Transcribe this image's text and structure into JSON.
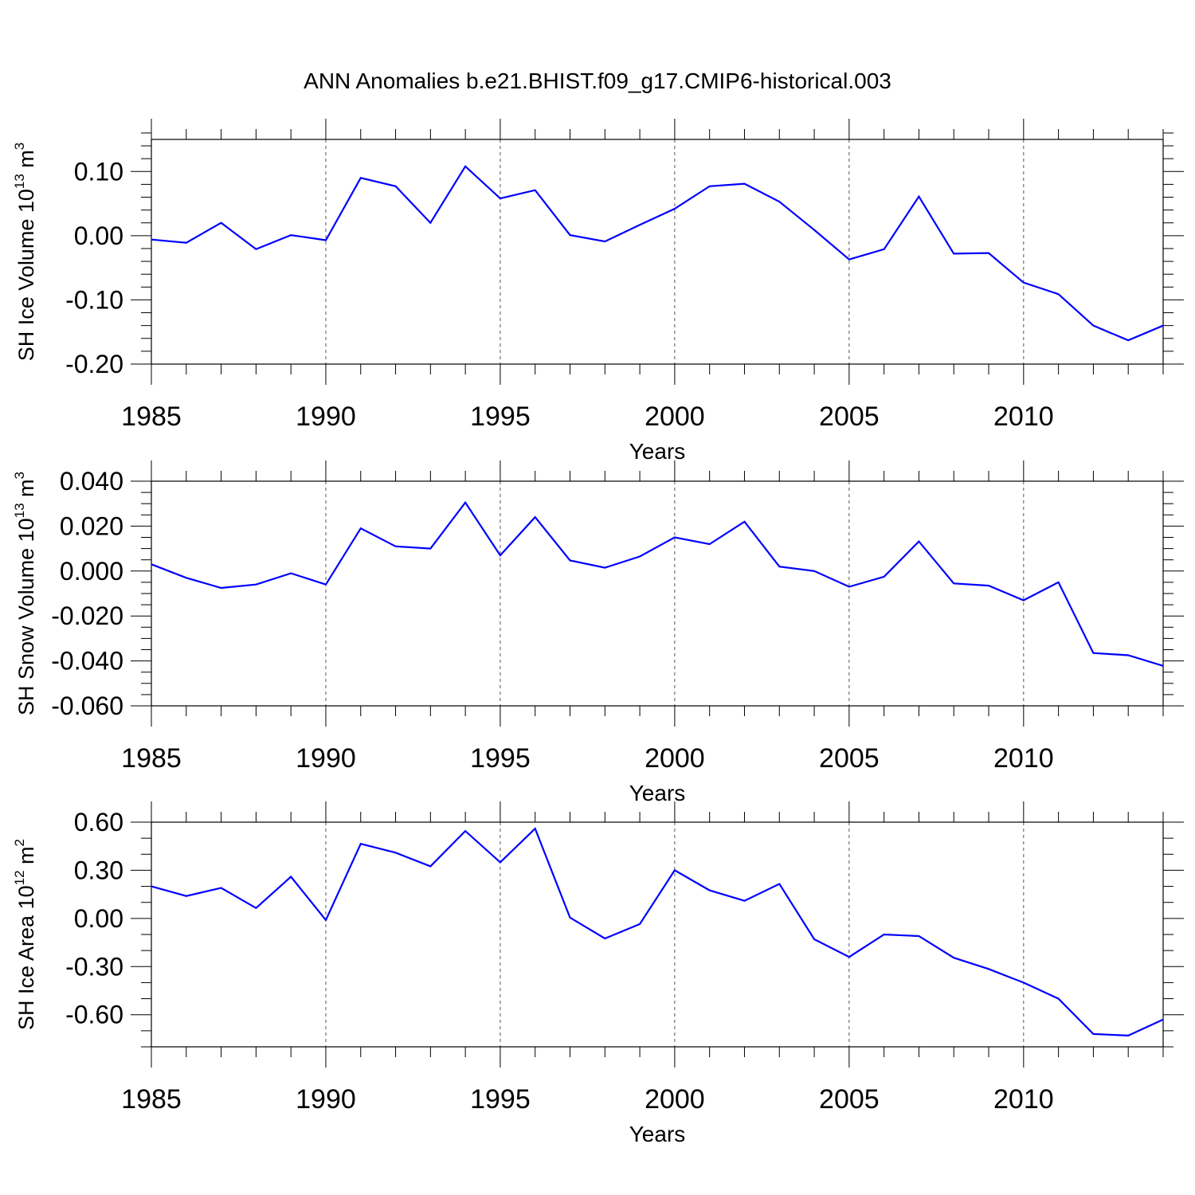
{
  "title": "ANN Anomalies b.e21.BHIST.f09_g17.CMIP6-historical.003",
  "chart_data": [
    {
      "type": "line",
      "xlabel": "Years",
      "ylabel_text": "SH Ice Volume 10",
      "ylabel_sup": "13",
      "ylabel_unit": " m",
      "ylabel_unit_sup": "3",
      "xlim": [
        1985,
        2014
      ],
      "ylim": [
        -0.2,
        0.15
      ],
      "yticks": [
        -0.2,
        -0.1,
        0.0,
        0.1
      ],
      "ytick_labels": [
        "-0.20",
        "-0.10",
        "0.00",
        "0.10"
      ],
      "yminor_step": 0.02,
      "xticks": [
        1985,
        1990,
        1995,
        2000,
        2005,
        2010
      ],
      "xtick_labels": [
        "1985",
        "1990",
        "1995",
        "2000",
        "2005",
        "2010"
      ],
      "grid": "dashed vertical at major x ticks",
      "series": [
        {
          "name": "SH Ice Volume",
          "color": "#0000ff",
          "x": [
            1985,
            1986,
            1987,
            1988,
            1989,
            1990,
            1991,
            1992,
            1993,
            1994,
            1995,
            1996,
            1997,
            1998,
            1999,
            2000,
            2001,
            2002,
            2003,
            2004,
            2005,
            2006,
            2007,
            2008,
            2009,
            2010,
            2011,
            2012,
            2013,
            2014
          ],
          "y": [
            -0.006,
            -0.011,
            0.02,
            -0.021,
            0.001,
            -0.007,
            0.09,
            0.077,
            0.02,
            0.108,
            0.058,
            0.071,
            0.001,
            -0.009,
            0.017,
            0.042,
            0.077,
            0.081,
            0.053,
            0.009,
            -0.037,
            -0.021,
            0.061,
            -0.028,
            -0.027,
            -0.073,
            -0.091,
            -0.14,
            -0.163,
            -0.14
          ]
        }
      ]
    },
    {
      "type": "line",
      "xlabel": "Years",
      "ylabel_text": "SH Snow Volume 10",
      "ylabel_sup": "13",
      "ylabel_unit": " m",
      "ylabel_unit_sup": "3",
      "xlim": [
        1985,
        2014
      ],
      "ylim": [
        -0.06,
        0.04
      ],
      "yticks": [
        -0.06,
        -0.04,
        -0.02,
        0.0,
        0.02,
        0.04
      ],
      "ytick_labels": [
        "-0.060",
        "-0.040",
        "-0.020",
        "0.000",
        "0.020",
        "0.040"
      ],
      "yminor_step": 0.005,
      "xticks": [
        1985,
        1990,
        1995,
        2000,
        2005,
        2010
      ],
      "xtick_labels": [
        "1985",
        "1990",
        "1995",
        "2000",
        "2005",
        "2010"
      ],
      "grid": "dashed vertical at major x ticks",
      "series": [
        {
          "name": "SH Snow Volume",
          "color": "#0000ff",
          "x": [
            1985,
            1986,
            1987,
            1988,
            1989,
            1990,
            1991,
            1992,
            1993,
            1994,
            1995,
            1996,
            1997,
            1998,
            1999,
            2000,
            2001,
            2002,
            2003,
            2004,
            2005,
            2006,
            2007,
            2008,
            2009,
            2010,
            2011,
            2012,
            2013,
            2014
          ],
          "y": [
            0.003,
            -0.003,
            -0.0075,
            -0.006,
            -0.001,
            -0.006,
            0.019,
            0.011,
            0.01,
            0.0305,
            0.007,
            0.024,
            0.0047,
            0.0015,
            0.0065,
            0.015,
            0.012,
            0.022,
            0.002,
            0.0,
            -0.007,
            -0.0025,
            0.0132,
            -0.0055,
            -0.0065,
            -0.013,
            -0.005,
            -0.0365,
            -0.0375,
            -0.0422
          ]
        }
      ]
    },
    {
      "type": "line",
      "xlabel": "Years",
      "ylabel_text": "SH Ice Area 10",
      "ylabel_sup": "12",
      "ylabel_unit": " m",
      "ylabel_unit_sup": "2",
      "xlim": [
        1985,
        2014
      ],
      "ylim": [
        -0.8,
        0.6
      ],
      "yticks": [
        -0.6,
        -0.3,
        0.0,
        0.3,
        0.6
      ],
      "ytick_labels": [
        "-0.60",
        "-0.30",
        "0.00",
        "0.30",
        "0.60"
      ],
      "yminor_step": 0.1,
      "xticks": [
        1985,
        1990,
        1995,
        2000,
        2005,
        2010
      ],
      "xtick_labels": [
        "1985",
        "1990",
        "1995",
        "2000",
        "2005",
        "2010"
      ],
      "grid": "dashed vertical at major x ticks",
      "series": [
        {
          "name": "SH Ice Area",
          "color": "#0000ff",
          "x": [
            1985,
            1986,
            1987,
            1988,
            1989,
            1990,
            1991,
            1992,
            1993,
            1994,
            1995,
            1996,
            1997,
            1998,
            1999,
            2000,
            2001,
            2002,
            2003,
            2004,
            2005,
            2006,
            2007,
            2008,
            2009,
            2010,
            2011,
            2012,
            2013,
            2014
          ],
          "y": [
            0.2,
            0.14,
            0.19,
            0.065,
            0.26,
            -0.01,
            0.465,
            0.41,
            0.325,
            0.545,
            0.35,
            0.56,
            0.005,
            -0.125,
            -0.035,
            0.3,
            0.175,
            0.11,
            0.215,
            -0.13,
            -0.24,
            -0.1,
            -0.11,
            -0.245,
            -0.315,
            -0.4,
            -0.5,
            -0.72,
            -0.73,
            -0.63
          ]
        }
      ]
    }
  ]
}
